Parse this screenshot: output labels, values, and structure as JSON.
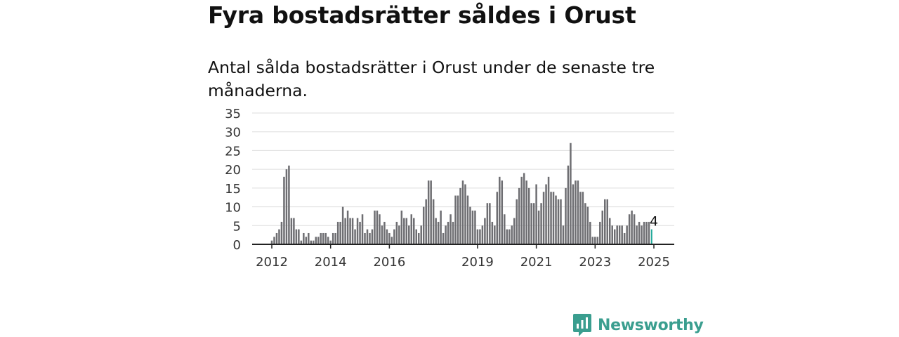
{
  "title": "Fyra bostadsrätter såldes i Orust",
  "subtitle": "Antal sålda bostadsrätter i Orust under de senaste tre månaderna.",
  "brand": {
    "name": "Newsworthy",
    "icon": "bar-chart-speech-bubble-icon",
    "color": "#3a9e8f"
  },
  "colors": {
    "bar": "#6e6e72",
    "highlight": "#20a99a",
    "grid": "#dddddd",
    "axis": "#222222"
  },
  "chart_data": {
    "type": "bar",
    "x_start": "2012-01",
    "x_end": "2025-01",
    "frequency": "monthly",
    "ylim": [
      0,
      35
    ],
    "yticks": [
      "0",
      "5",
      "10",
      "15",
      "20",
      "25",
      "30",
      "35"
    ],
    "xticks": [
      {
        "label": "2012",
        "date": "2012-01"
      },
      {
        "label": "2014",
        "date": "2014-01"
      },
      {
        "label": "2016",
        "date": "2016-01"
      },
      {
        "label": "2019",
        "date": "2019-01"
      },
      {
        "label": "2021",
        "date": "2021-01"
      },
      {
        "label": "2023",
        "date": "2023-01"
      },
      {
        "label": "2025",
        "date": "2025-01"
      }
    ],
    "values": [
      1,
      2,
      3,
      4,
      6,
      18,
      20,
      21,
      7,
      7,
      4,
      4,
      1,
      3,
      2,
      3,
      1,
      1,
      2,
      2,
      3,
      3,
      3,
      2,
      1,
      3,
      3,
      6,
      6,
      10,
      7,
      9,
      7,
      7,
      4,
      7,
      6,
      8,
      3,
      4,
      3,
      4,
      9,
      9,
      8,
      5,
      6,
      4,
      3,
      2,
      4,
      6,
      5,
      9,
      7,
      7,
      5,
      8,
      7,
      4,
      3,
      5,
      10,
      12,
      17,
      17,
      12,
      7,
      6,
      9,
      3,
      5,
      6,
      8,
      6,
      13,
      13,
      15,
      17,
      16,
      13,
      10,
      9,
      9,
      4,
      4,
      5,
      7,
      11,
      11,
      6,
      5,
      14,
      18,
      17,
      8,
      4,
      4,
      5,
      7,
      12,
      15,
      18,
      19,
      17,
      15,
      11,
      11,
      16,
      9,
      11,
      14,
      16,
      18,
      14,
      14,
      13,
      12,
      12,
      5,
      15,
      21,
      27,
      16,
      17,
      17,
      14,
      14,
      11,
      10,
      6,
      2,
      2,
      2,
      6,
      9,
      12,
      12,
      7,
      5,
      4,
      5,
      5,
      5,
      3,
      5,
      8,
      9,
      8,
      5,
      6,
      5,
      6,
      6,
      6,
      4
    ],
    "highlight_last": true,
    "annotation": "4",
    "grid": true
  }
}
